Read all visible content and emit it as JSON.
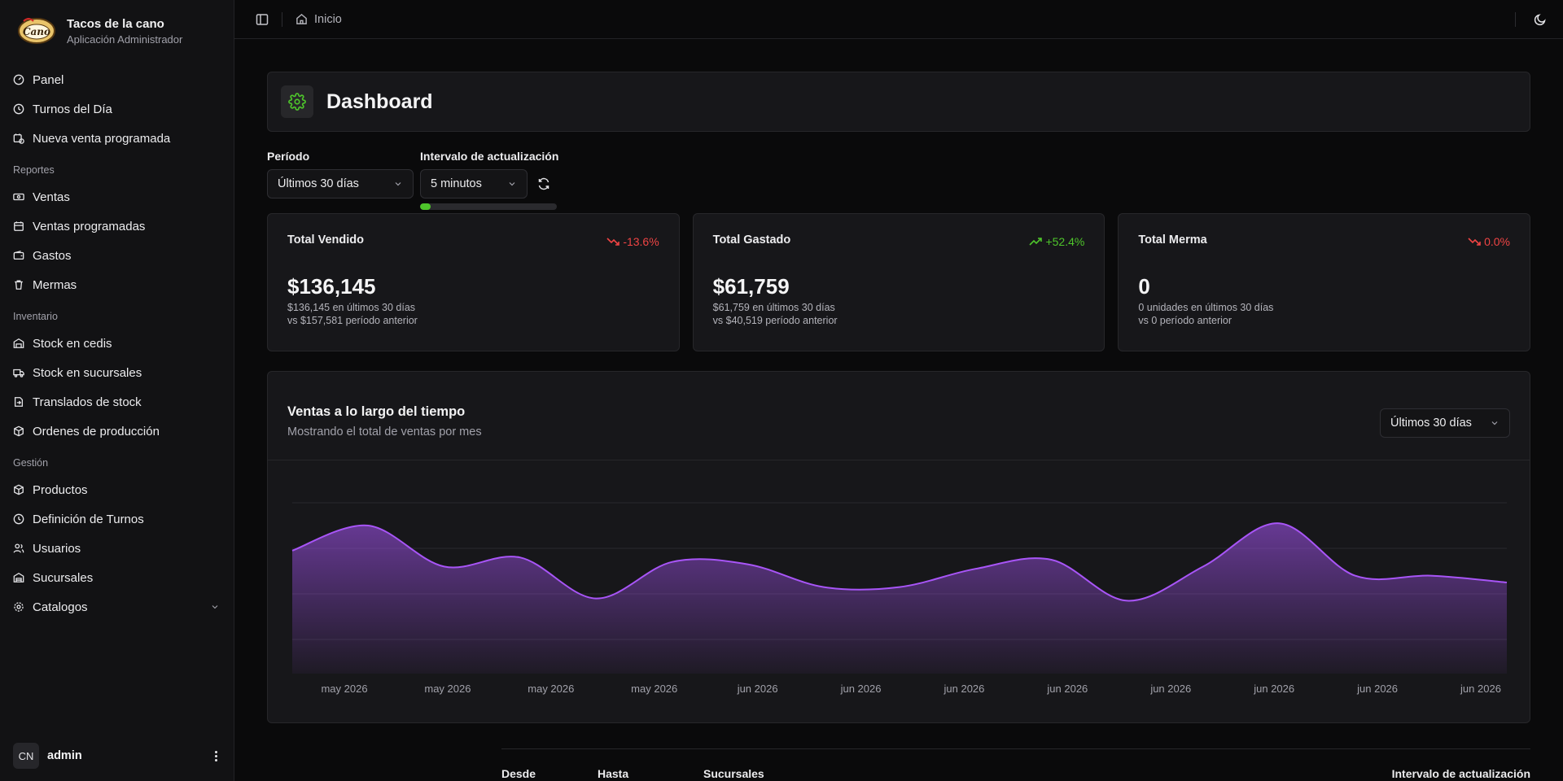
{
  "brand": {
    "name": "Tacos de la cano",
    "subtitle": "Aplicación Administrador",
    "logo_text": "Cano"
  },
  "nav_main": [
    {
      "label": "Panel",
      "icon": "gauge-icon"
    },
    {
      "label": "Turnos del Día",
      "icon": "clock-icon"
    },
    {
      "label": "Nueva venta programada",
      "icon": "calendar-clock-icon"
    }
  ],
  "reports": {
    "label": "Reportes",
    "items": [
      {
        "label": "Ventas",
        "icon": "banknote-icon"
      },
      {
        "label": "Ventas programadas",
        "icon": "calendar-icon"
      },
      {
        "label": "Gastos",
        "icon": "wallet-icon"
      },
      {
        "label": "Mermas",
        "icon": "trash-icon"
      }
    ]
  },
  "inventory": {
    "label": "Inventario",
    "items": [
      {
        "label": "Stock en cedis",
        "icon": "warehouse-icon"
      },
      {
        "label": "Stock en sucursales",
        "icon": "truck-icon"
      },
      {
        "label": "Translados de stock",
        "icon": "transfer-icon"
      },
      {
        "label": "Ordenes de producción",
        "icon": "package-icon"
      }
    ]
  },
  "management": {
    "label": "Gestión",
    "items": [
      {
        "label": "Productos",
        "icon": "box-icon"
      },
      {
        "label": "Definición de Turnos",
        "icon": "clock-icon"
      },
      {
        "label": "Usuarios",
        "icon": "users-icon"
      },
      {
        "label": "Sucursales",
        "icon": "store-icon"
      },
      {
        "label": "Catalogos",
        "icon": "settings-icon"
      }
    ]
  },
  "user": {
    "initials": "CN",
    "name": "admin"
  },
  "breadcrumb": {
    "label": "Inicio"
  },
  "page": {
    "title": "Dashboard"
  },
  "filters": {
    "period_label": "Período",
    "period_value": "Últimos 30 días",
    "interval_label": "Intervalo de actualización",
    "interval_value": "5 minutos",
    "refresh_progress": 0.08
  },
  "stats": [
    {
      "title": "Total Vendido",
      "change": "-13.6%",
      "trend": "down",
      "value": "$136,145",
      "sub1": "$136,145 en últimos 30 días",
      "sub2": "vs $157,581 período anterior"
    },
    {
      "title": "Total Gastado",
      "change": "+52.4%",
      "trend": "up",
      "value": "$61,759",
      "sub1": "$61,759 en últimos 30 días",
      "sub2": "vs $40,519 período anterior"
    },
    {
      "title": "Total Merma",
      "change": "0.0%",
      "trend": "down",
      "value": "0",
      "sub1": "0 unidades en últimos 30 días",
      "sub2": "vs 0 período anterior"
    }
  ],
  "chart_card": {
    "title": "Ventas a lo largo del tiempo",
    "subtitle": "Mostrando el total de ventas por mes",
    "select_value": "Últimos 30 días"
  },
  "chart_data": {
    "type": "area",
    "title": "Ventas a lo largo del tiempo",
    "x_tick_labels": [
      "may 2026",
      "may 2026",
      "may 2026",
      "may 2026",
      "jun 2026",
      "jun 2026",
      "jun 2026",
      "jun 2026",
      "jun 2026",
      "jun 2026",
      "jun 2026",
      "jun 2026"
    ],
    "values": [
      5400,
      6500,
      4700,
      5100,
      3300,
      4900,
      4800,
      3800,
      3800,
      4600,
      5000,
      3200,
      4700,
      6600,
      4300,
      4300,
      4000
    ],
    "ylim": [
      0,
      8000
    ],
    "grid": "horizontal",
    "color": "#a855f7"
  },
  "bottom_labels": {
    "from": "Desde",
    "to": "Hasta",
    "branches": "Sucursales",
    "interval": "Intervalo de actualización"
  },
  "colors": {
    "accent_green": "#4ec52b",
    "danger": "#ef4444",
    "purple": "#a855f7"
  }
}
